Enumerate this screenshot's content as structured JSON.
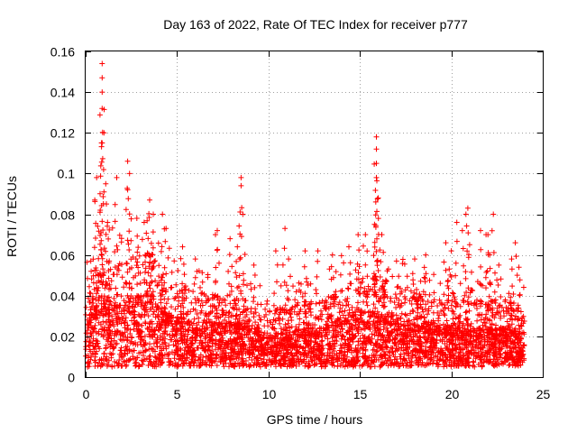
{
  "chart_data": {
    "type": "scatter",
    "title": "Day 163 of 2022, Rate Of TEC Index for receiver p777",
    "xlabel": "GPS time / hours",
    "ylabel": "ROTI / TECUs",
    "xlim": [
      0,
      25
    ],
    "ylim": [
      0,
      0.16
    ],
    "x_ticks": [
      0,
      5,
      10,
      15,
      20,
      25
    ],
    "y_ticks": [
      0,
      0.02,
      0.04,
      0.06,
      0.08,
      0.1,
      0.12,
      0.14,
      0.16
    ],
    "x_tick_labels": [
      "0",
      "5",
      "10",
      "15",
      "20",
      "25"
    ],
    "y_tick_labels": [
      "0",
      "0.02",
      "0.04",
      "0.06",
      "0.08",
      "0.1",
      "0.12",
      "0.14",
      "0.16"
    ],
    "grid": true,
    "marker": "+",
    "series": [
      {
        "name": "ROTI",
        "color": "#ff0000",
        "x_range": [
          0,
          24
        ],
        "baseline_profile": [
          [
            0,
            0.022
          ],
          [
            0.5,
            0.028
          ],
          [
            1,
            0.03
          ],
          [
            2,
            0.03
          ],
          [
            3,
            0.032
          ],
          [
            3.5,
            0.035
          ],
          [
            4,
            0.028
          ],
          [
            5,
            0.024
          ],
          [
            6,
            0.022
          ],
          [
            7,
            0.022
          ],
          [
            8,
            0.022
          ],
          [
            9,
            0.02
          ],
          [
            10,
            0.018
          ],
          [
            11,
            0.018
          ],
          [
            12,
            0.02
          ],
          [
            13,
            0.02
          ],
          [
            14,
            0.024
          ],
          [
            15,
            0.026
          ],
          [
            16,
            0.026
          ],
          [
            17,
            0.024
          ],
          [
            18,
            0.022
          ],
          [
            19,
            0.022
          ],
          [
            20,
            0.02
          ],
          [
            21,
            0.02
          ],
          [
            22,
            0.02
          ],
          [
            23,
            0.02
          ],
          [
            24,
            0.018
          ]
        ],
        "lower_envelope": 0.005,
        "spikes": [
          [
            0.3,
            0.052
          ],
          [
            0.5,
            0.087
          ],
          [
            0.6,
            0.098
          ],
          [
            0.8,
            0.082
          ],
          [
            0.9,
            0.115
          ],
          [
            0.9,
            0.132
          ],
          [
            0.9,
            0.14
          ],
          [
            0.9,
            0.147
          ],
          [
            0.9,
            0.154
          ],
          [
            1.0,
            0.12
          ],
          [
            1.1,
            0.095
          ],
          [
            1.2,
            0.076
          ],
          [
            1.7,
            0.098
          ],
          [
            2.3,
            0.092
          ],
          [
            2.3,
            0.106
          ],
          [
            2.4,
            0.1
          ],
          [
            2.8,
            0.078
          ],
          [
            3.2,
            0.076
          ],
          [
            3.5,
            0.087
          ],
          [
            3.7,
            0.08
          ],
          [
            4.2,
            0.08
          ],
          [
            4.4,
            0.073
          ],
          [
            5.3,
            0.064
          ],
          [
            6.0,
            0.058
          ],
          [
            7.1,
            0.07
          ],
          [
            7.2,
            0.072
          ],
          [
            7.9,
            0.068
          ],
          [
            8.3,
            0.064
          ],
          [
            8.5,
            0.094
          ],
          [
            8.5,
            0.098
          ],
          [
            8.6,
            0.08
          ],
          [
            9.2,
            0.055
          ],
          [
            10.4,
            0.062
          ],
          [
            10.9,
            0.073
          ],
          [
            11.1,
            0.058
          ],
          [
            12.0,
            0.062
          ],
          [
            12.7,
            0.062
          ],
          [
            13.5,
            0.06
          ],
          [
            14.4,
            0.064
          ],
          [
            14.9,
            0.07
          ],
          [
            15.3,
            0.07
          ],
          [
            15.8,
            0.075
          ],
          [
            15.9,
            0.098
          ],
          [
            15.9,
            0.105
          ],
          [
            15.9,
            0.112
          ],
          [
            15.9,
            0.118
          ],
          [
            16.0,
            0.088
          ],
          [
            16.2,
            0.07
          ],
          [
            17.0,
            0.057
          ],
          [
            18.0,
            0.058
          ],
          [
            18.6,
            0.06
          ],
          [
            19.7,
            0.066
          ],
          [
            20.0,
            0.062
          ],
          [
            20.3,
            0.076
          ],
          [
            20.6,
            0.072
          ],
          [
            20.8,
            0.08
          ],
          [
            20.9,
            0.083
          ],
          [
            21.0,
            0.065
          ],
          [
            21.6,
            0.072
          ],
          [
            21.9,
            0.07
          ],
          [
            22.0,
            0.07
          ],
          [
            22.1,
            0.06
          ],
          [
            22.3,
            0.08
          ],
          [
            22.6,
            0.055
          ],
          [
            23.3,
            0.058
          ],
          [
            23.5,
            0.066
          ],
          [
            23.7,
            0.054
          ]
        ]
      }
    ]
  }
}
